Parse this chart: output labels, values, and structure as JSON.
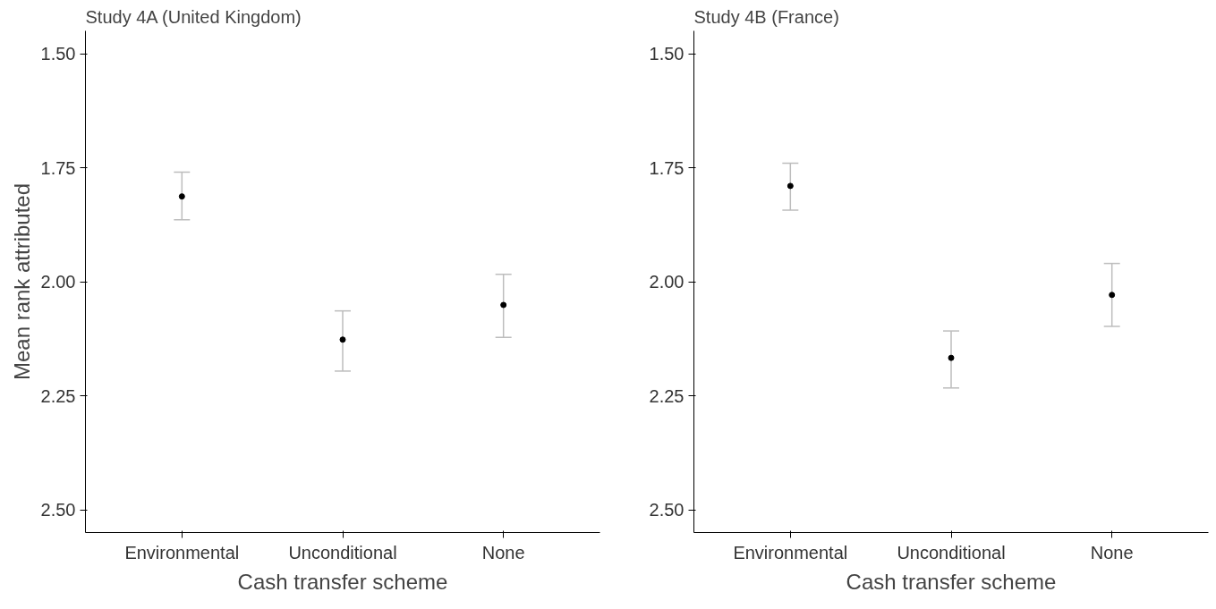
{
  "chart_data": [
    {
      "type": "scatter",
      "title": "Study 4A (United Kingdom)",
      "xlabel": "Cash transfer scheme",
      "ylabel": "Mean rank attributed",
      "categories": [
        "Environmental",
        "Unconditional",
        "None"
      ],
      "values": [
        1.813,
        2.127,
        2.051
      ],
      "errors": [
        [
          1.76,
          1.864
        ],
        [
          2.064,
          2.196
        ],
        [
          1.984,
          2.122
        ]
      ],
      "color": "#000000",
      "ylim": [
        2.55,
        1.45
      ],
      "yticks": [
        {
          "value": 1.5,
          "label": "1.50"
        },
        {
          "value": 1.75,
          "label": "1.75"
        },
        {
          "value": 2,
          "label": "2.00"
        },
        {
          "value": 2.25,
          "label": "2.25"
        },
        {
          "value": 2.5,
          "label": "2.50"
        }
      ],
      "grid": false,
      "marker": "circle"
    },
    {
      "type": "scatter",
      "title": "Study 4B (France)",
      "xlabel": "Cash transfer scheme",
      "categories": [
        "Environmental",
        "Unconditional",
        "None"
      ],
      "values": [
        1.79,
        2.167,
        2.029
      ],
      "errors": [
        [
          1.74,
          1.843
        ],
        [
          2.108,
          2.233
        ],
        [
          1.96,
          2.098
        ]
      ],
      "color": "#000000",
      "ylim": [
        2.55,
        1.45
      ],
      "yticks": [
        {
          "value": 1.5,
          "label": "1.50"
        },
        {
          "value": 1.75,
          "label": "1.75"
        },
        {
          "value": 2,
          "label": "2.00"
        },
        {
          "value": 2.25,
          "label": "2.25"
        },
        {
          "value": 2.5,
          "label": "2.50"
        }
      ],
      "grid": false,
      "marker": "circle"
    }
  ]
}
